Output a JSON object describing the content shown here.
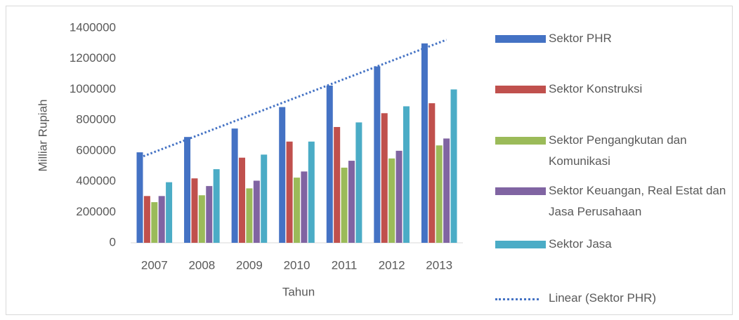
{
  "chart_data": {
    "type": "bar",
    "x_label": "Tahun",
    "y_label": "Milliar Rupiah",
    "categories": [
      "2007",
      "2008",
      "2009",
      "2010",
      "2011",
      "2012",
      "2013"
    ],
    "series": [
      {
        "name": "Sektor PHR",
        "color": "#4472c4",
        "values": [
          590000,
          690000,
          745000,
          885000,
          1025000,
          1150000,
          1300000
        ]
      },
      {
        "name": "Sektor Konstruksi",
        "color": "#c0504d",
        "values": [
          305000,
          420000,
          555000,
          660000,
          755000,
          845000,
          910000
        ]
      },
      {
        "name": "Sektor Pengangkutan dan Komunikasi",
        "color": "#9bbb59",
        "values": [
          265000,
          310000,
          355000,
          425000,
          490000,
          550000,
          635000
        ]
      },
      {
        "name": "Sektor Keuangan, Real Estat dan Jasa Perusahaan",
        "color": "#8064a2",
        "values": [
          305000,
          370000,
          405000,
          465000,
          535000,
          600000,
          680000
        ]
      },
      {
        "name": "Sektor Jasa",
        "color": "#4bacc6",
        "values": [
          395000,
          480000,
          575000,
          660000,
          785000,
          890000,
          1000000
        ]
      }
    ],
    "trendline": {
      "name": "Linear (Sektor PHR)",
      "series": 0,
      "color": "#4472c4"
    },
    "ylim": [
      0,
      1400000
    ],
    "yticks": [
      0,
      200000,
      400000,
      600000,
      800000,
      1000000,
      1200000,
      1400000
    ],
    "grid": false,
    "legend": "right"
  }
}
